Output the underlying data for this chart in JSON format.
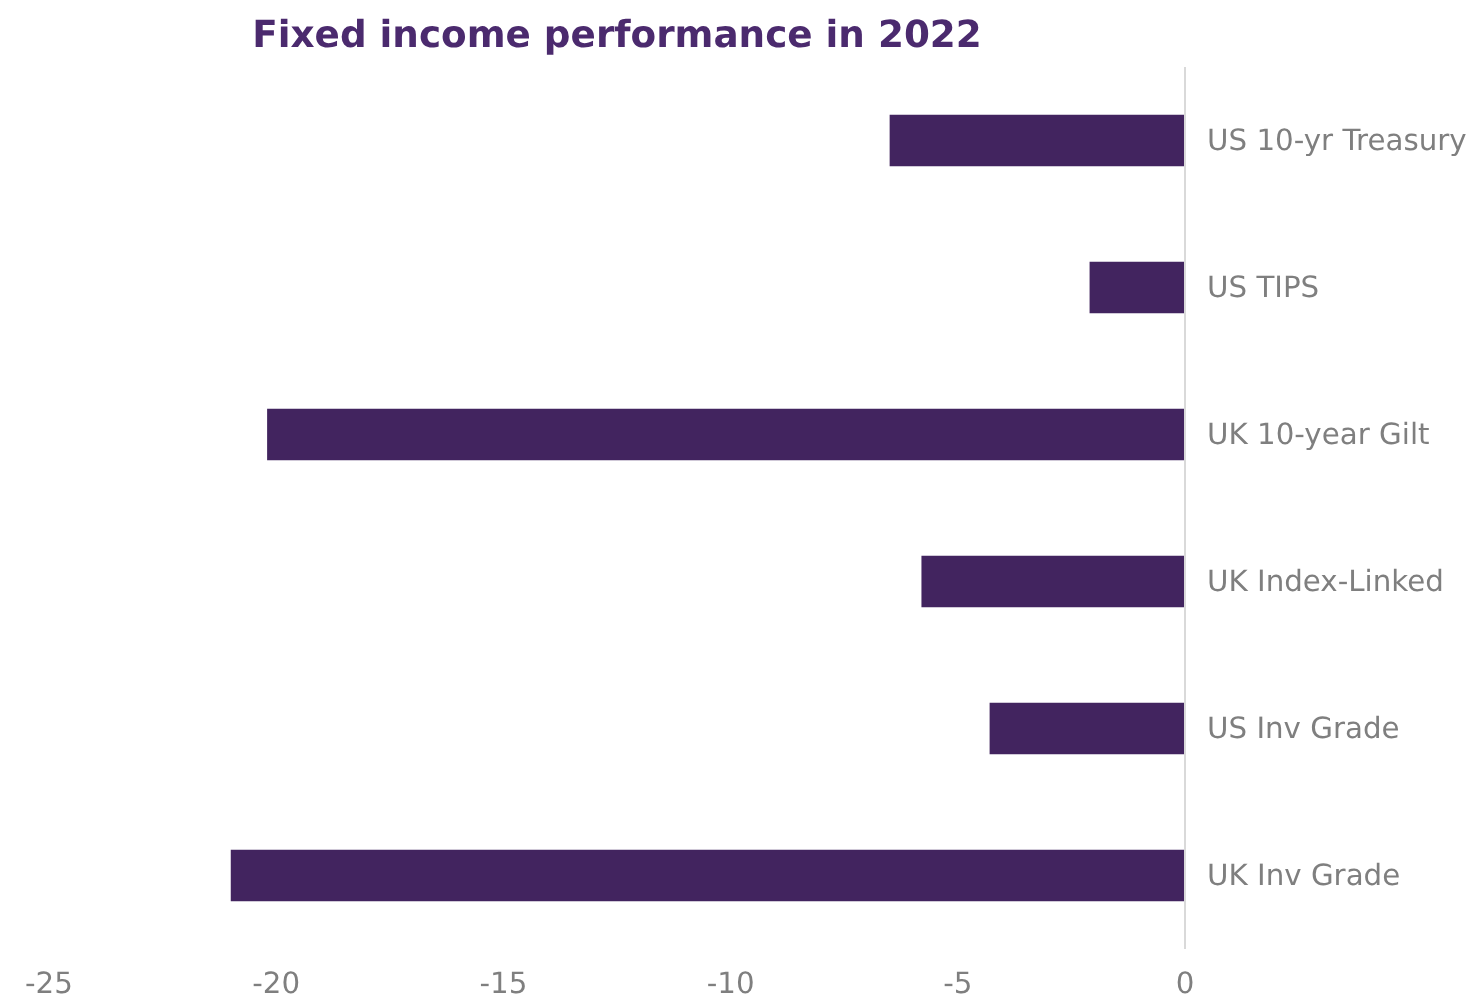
{
  "chart_data": {
    "type": "bar",
    "orientation": "horizontal",
    "title": "Fixed income performance in 2022",
    "categories": [
      "US 10-yr Treasury",
      "US TIPS",
      "UK 10-year Gilt",
      "UK Index-Linked",
      "US Inv Grade",
      "UK Inv Grade"
    ],
    "values": [
      -6.5,
      -2.1,
      -20.2,
      -5.8,
      -4.3,
      -21.0
    ],
    "color": "#42245f",
    "xlim": [
      -25,
      0
    ],
    "xticks": [
      -25,
      -20,
      -15,
      -10,
      -5,
      0
    ],
    "grid": false
  }
}
